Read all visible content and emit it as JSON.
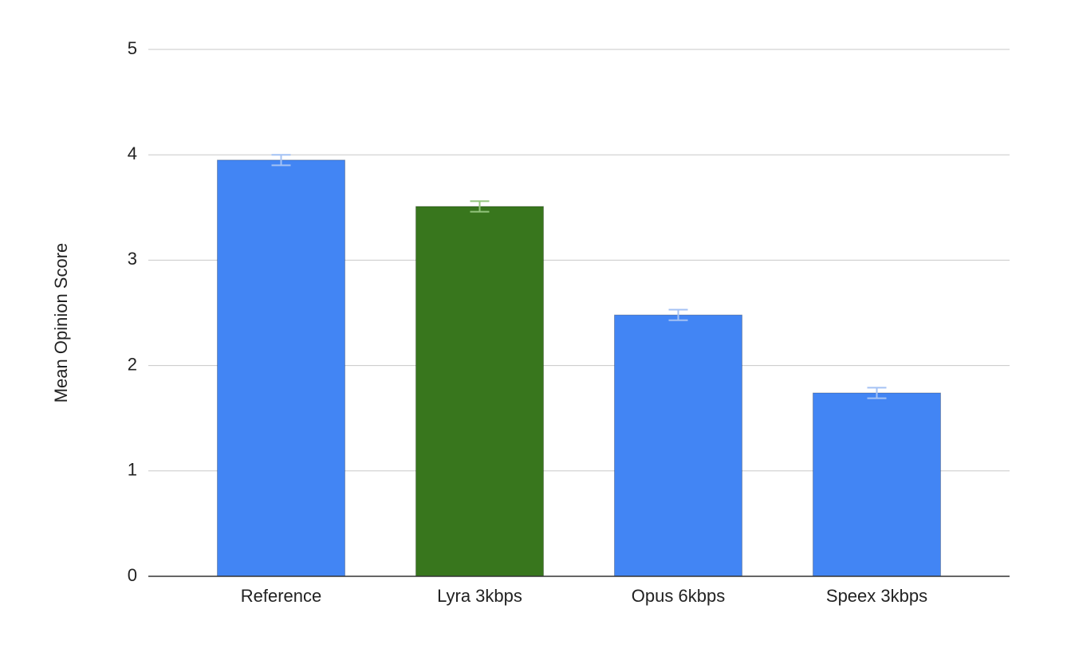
{
  "chart_data": {
    "type": "bar",
    "y_label": "Mean Opinion Score",
    "categories": [
      "Reference",
      "Lyra 3kbps",
      "Opus 6kbps",
      "Speex 3kbps"
    ],
    "values": [
      3.95,
      3.51,
      2.48,
      1.74
    ],
    "errors": [
      0.05,
      0.05,
      0.05,
      0.05
    ],
    "colors": [
      "#4285f4",
      "#38761d",
      "#4285f4",
      "#4285f4"
    ],
    "error_colors": [
      "#a4c2f4",
      "#93c47d",
      "#a4c2f4",
      "#a4c2f4"
    ],
    "ylim": [
      0,
      5
    ],
    "yticks": [
      0,
      1,
      2,
      3,
      4,
      5
    ],
    "grid": true
  }
}
